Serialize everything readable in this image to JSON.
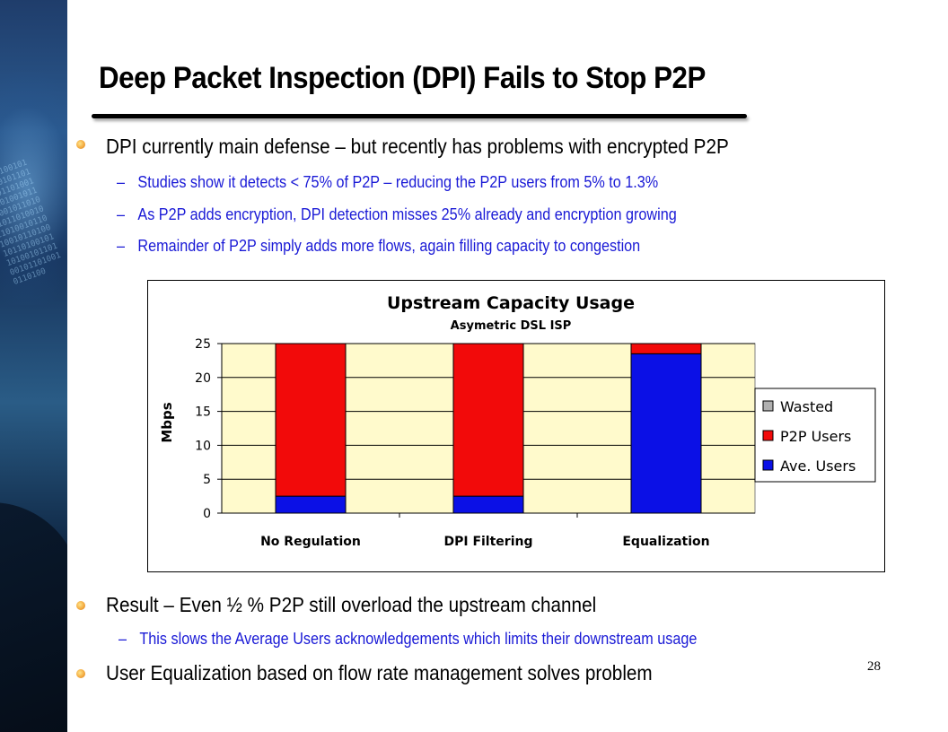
{
  "slide": {
    "title": "Deep Packet Inspection (DPI) Fails to Stop P2P",
    "page_number": "28",
    "bullets": [
      {
        "text": "DPI currently main defense – but recently has problems with encrypted P2P",
        "subs": [
          "Studies show it detects < 75% of P2P – reducing the P2P users from 5% to 1.3%",
          "As P2P adds encryption, DPI detection misses 25% already and encryption growing",
          "Remainder of P2P simply adds more flows, again filling capacity to congestion"
        ]
      },
      {
        "text": "Result – Even ½ % P2P still overload the upstream channel",
        "subs": [
          "This slows the Average Users acknowledgements which limits their downstream usage"
        ]
      },
      {
        "text": "User Equalization based on flow rate management solves problem",
        "subs": []
      }
    ],
    "colors": {
      "text": "#000000",
      "sub_text": "#1a1ad6",
      "bullet": "#f2a63a"
    }
  },
  "chart_data": {
    "type": "bar",
    "stacked": true,
    "title": "Upstream Capacity Usage",
    "subtitle": "Asymetric DSL ISP",
    "xlabel": "",
    "ylabel": "Mbps",
    "ylim": [
      0,
      25
    ],
    "yticks": [
      0,
      5,
      10,
      15,
      20,
      25
    ],
    "categories": [
      "No Regulation",
      "DPI Filtering",
      "Equalization"
    ],
    "series": [
      {
        "name": "Ave. Users",
        "color": "#0b10e6",
        "values": [
          2.5,
          2.5,
          23.5
        ]
      },
      {
        "name": "P2P Users",
        "color": "#f20a0a",
        "values": [
          22.5,
          22.5,
          1.5
        ]
      },
      {
        "name": "Wasted",
        "color": "#b0b0b0",
        "values": [
          0,
          0,
          0
        ]
      }
    ],
    "legend_order": [
      "Wasted",
      "P2P Users",
      "Ave. Users"
    ],
    "legend_position": "right",
    "plot_background": "#fffacc",
    "grid": true
  }
}
